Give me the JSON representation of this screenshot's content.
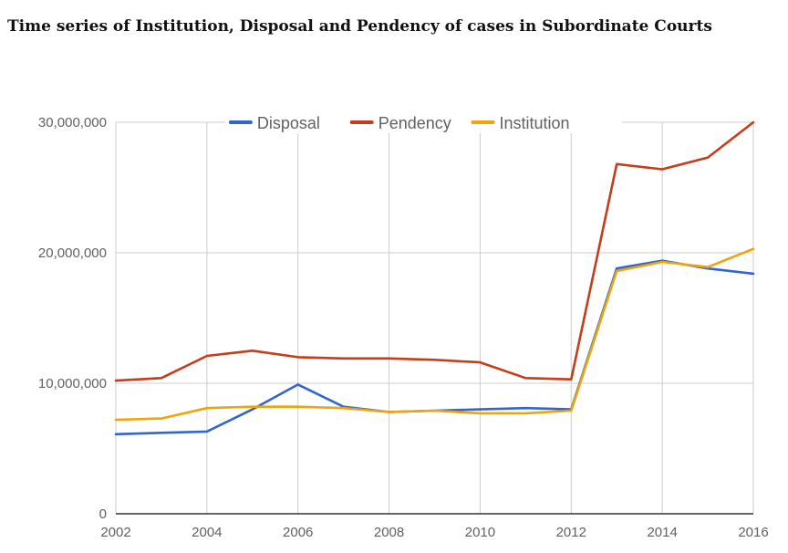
{
  "title": "Time series of Institution, Disposal and Pendency of cases in Subordinate Courts",
  "chart_data": {
    "type": "line",
    "title": "Time series of Institution, Disposal and Pendency of cases in Subordinate Courts",
    "xlabel": "",
    "ylabel": "",
    "x": [
      2002,
      2003,
      2004,
      2005,
      2006,
      2007,
      2008,
      2009,
      2010,
      2011,
      2012,
      2013,
      2014,
      2015,
      2016
    ],
    "x_ticks": [
      "2002",
      "2004",
      "2006",
      "2008",
      "2010",
      "2012",
      "2014",
      "2016"
    ],
    "y_ticks": [
      "0",
      "10,000,000",
      "20,000,000",
      "30,000,000"
    ],
    "ylim": [
      0,
      30000000
    ],
    "xlim": [
      2002,
      2016
    ],
    "grid": true,
    "legend_position": "top",
    "series": [
      {
        "name": "Disposal",
        "color": "#3366cc",
        "values": [
          6100000,
          6200000,
          6300000,
          8000000,
          9900000,
          8200000,
          7800000,
          7900000,
          8000000,
          8100000,
          8000000,
          18800000,
          19400000,
          18800000,
          18400000
        ]
      },
      {
        "name": "Pendency",
        "color": "#c53d1a",
        "values": [
          10200000,
          10400000,
          12100000,
          12500000,
          12000000,
          11900000,
          11900000,
          11800000,
          11600000,
          10400000,
          10300000,
          26800000,
          26400000,
          27300000,
          30000000
        ]
      },
      {
        "name": "Institution",
        "color": "#f0a30a",
        "values": [
          7200000,
          7300000,
          8100000,
          8200000,
          8200000,
          8100000,
          7800000,
          7900000,
          7700000,
          7700000,
          7900000,
          18600000,
          19300000,
          18900000,
          20300000
        ]
      }
    ]
  }
}
